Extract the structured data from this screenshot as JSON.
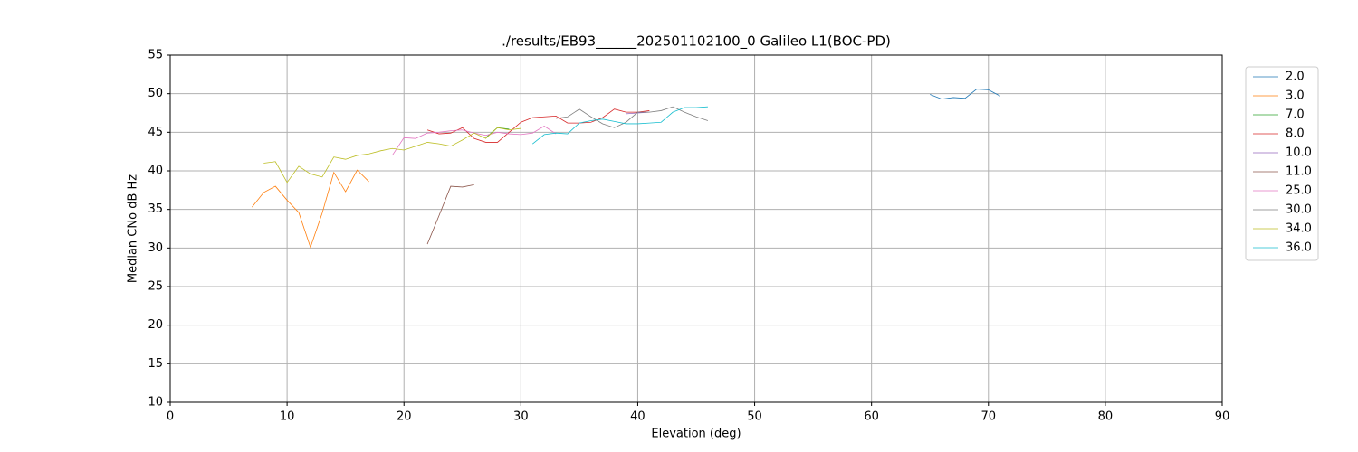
{
  "chart_data": {
    "type": "line",
    "title": "./results/EB93______202501102100_0 Galileo L1(BOC-PD)",
    "x_label": "Elevation (deg)",
    "y_label": "Median CNo dB Hz",
    "xlim": [
      0,
      90
    ],
    "xticks": [
      0,
      10,
      20,
      30,
      40,
      50,
      60,
      70,
      80,
      90
    ],
    "ylim": [
      10,
      55
    ],
    "yticks": [
      10,
      15,
      20,
      25,
      30,
      35,
      40,
      45,
      50,
      55
    ],
    "grid": true,
    "legend": "upper right outside",
    "series": [
      {
        "name": "2.0",
        "color": "#1f77b4",
        "x": [
          65,
          66,
          67,
          68,
          69,
          70,
          71
        ],
        "values": [
          49.9,
          49.3,
          49.5,
          49.4,
          50.6,
          50.5,
          49.7
        ]
      },
      {
        "name": "3.0",
        "color": "#ff7f0e",
        "x": [
          7,
          8,
          9,
          10,
          11,
          12,
          13,
          14,
          15,
          16,
          17
        ],
        "values": [
          35.3,
          37.2,
          38.0,
          36.2,
          34.6,
          30.1,
          34.5,
          39.8,
          37.3,
          40.1,
          38.6
        ]
      },
      {
        "name": "7.0",
        "color": "#2ca02c",
        "x": [
          27,
          28,
          29
        ],
        "values": [
          44.3,
          45.6,
          45.4
        ]
      },
      {
        "name": "8.0",
        "color": "#d62728",
        "x": [
          22,
          23,
          24,
          25,
          26,
          27,
          28,
          29,
          30,
          31,
          32,
          33,
          34,
          35,
          36,
          37,
          38,
          39,
          40,
          41
        ],
        "values": [
          45.3,
          44.8,
          44.9,
          45.6,
          44.2,
          43.7,
          43.7,
          45.0,
          46.3,
          46.9,
          47.0,
          47.1,
          46.2,
          46.2,
          46.3,
          46.9,
          48.0,
          47.6,
          47.6,
          47.8
        ]
      },
      {
        "name": "10.0",
        "color": "#9467bd",
        "x": [
          39,
          40,
          41
        ],
        "values": [
          47.4,
          47.5,
          47.6
        ]
      },
      {
        "name": "11.0",
        "color": "#8c564b",
        "x": [
          22,
          23,
          24,
          25,
          26
        ],
        "values": [
          30.5,
          34.2,
          38.0,
          37.9,
          38.2
        ]
      },
      {
        "name": "25.0",
        "color": "#e377c2",
        "x": [
          19,
          20,
          21,
          22,
          23,
          24,
          25,
          26,
          27,
          28,
          29,
          30,
          31,
          32,
          33
        ],
        "values": [
          42.0,
          44.3,
          44.2,
          44.9,
          45.0,
          45.2,
          45.3,
          44.9,
          44.6,
          45.0,
          44.8,
          44.7,
          44.9,
          45.8,
          44.8
        ]
      },
      {
        "name": "30.0",
        "color": "#7f7f7f",
        "x": [
          33,
          34,
          35,
          36,
          37,
          38,
          39,
          40,
          41,
          42,
          43,
          44,
          45,
          46
        ],
        "values": [
          46.8,
          47.0,
          48.0,
          47.0,
          46.1,
          45.6,
          46.3,
          47.6,
          47.6,
          47.8,
          48.3,
          47.6,
          47.0,
          46.5
        ]
      },
      {
        "name": "34.0",
        "color": "#bcbd22",
        "x": [
          8,
          9,
          10,
          11,
          12,
          13,
          14,
          15,
          16,
          17,
          18,
          19,
          20,
          21,
          22,
          23,
          24,
          25,
          26,
          27,
          28,
          29,
          30
        ],
        "values": [
          41.0,
          41.2,
          38.5,
          40.6,
          39.6,
          39.2,
          41.8,
          41.5,
          42.0,
          42.2,
          42.6,
          42.9,
          42.7,
          43.2,
          43.7,
          43.5,
          43.2,
          44.0,
          44.9,
          44.2,
          45.6,
          45.3,
          45.5
        ]
      },
      {
        "name": "36.0",
        "color": "#17becf",
        "x": [
          31,
          32,
          33,
          34,
          35,
          36,
          37,
          38,
          39,
          40,
          41,
          42,
          43,
          44,
          45,
          46
        ],
        "values": [
          43.5,
          44.7,
          44.9,
          44.8,
          46.2,
          46.5,
          46.7,
          46.4,
          46.1,
          46.1,
          46.2,
          46.3,
          47.6,
          48.2,
          48.2,
          48.3
        ]
      }
    ]
  }
}
